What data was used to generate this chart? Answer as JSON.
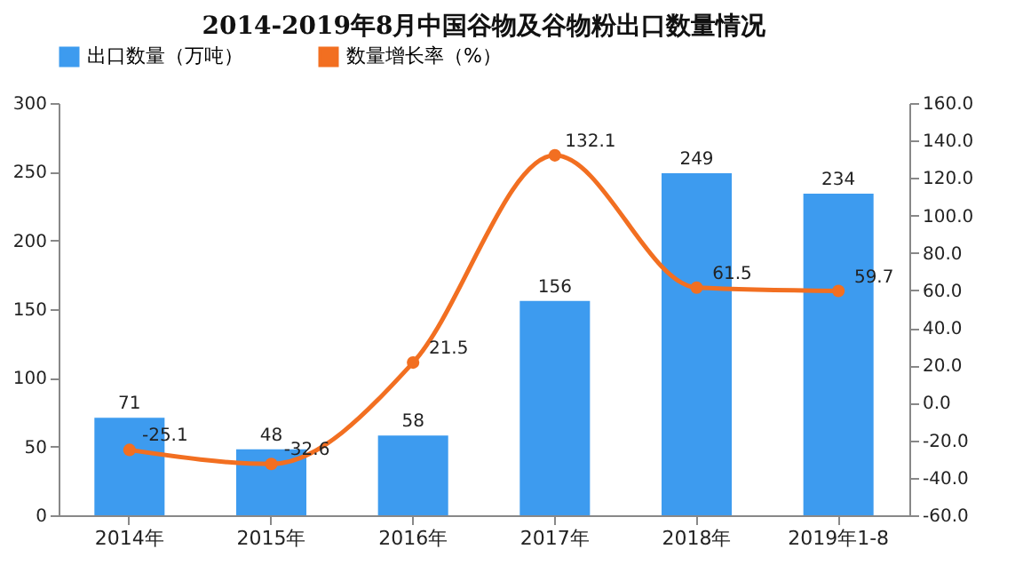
{
  "chart_data": {
    "type": "bar",
    "title": "2014-2019年8月中国谷物及谷物粉出口数量情况",
    "categories": [
      "2014年",
      "2015年",
      "2016年",
      "2017年",
      "2018年",
      "2019年1-8"
    ],
    "series": [
      {
        "name": "出口数量（万吨）",
        "type": "bar",
        "color": "#3d9bef",
        "values": [
          71,
          48,
          58,
          156,
          249,
          234
        ]
      },
      {
        "name": "数量增长率（%）",
        "type": "line",
        "axis": "y2",
        "color": "#f26f21",
        "values": [
          -25.1,
          -32.6,
          21.5,
          132.1,
          61.5,
          59.7
        ],
        "value_labels": [
          "-25.1",
          "-32.6",
          "21.5",
          "132.1",
          "61.5",
          "59.7"
        ]
      }
    ],
    "data_labels": true,
    "marker": "circle",
    "legend": "top",
    "grid": false,
    "ylim": [
      0,
      300
    ],
    "yticks": [
      0,
      50,
      100,
      150,
      200,
      250,
      300
    ],
    "y2lim": [
      -60,
      160
    ],
    "y2ticks": [
      {
        "value": -60,
        "label": "-60.0"
      },
      {
        "value": -40,
        "label": "-40.0"
      },
      {
        "value": -20,
        "label": "-20.0"
      },
      {
        "value": 0,
        "label": "0.0"
      },
      {
        "value": 20,
        "label": "20.0"
      },
      {
        "value": 40,
        "label": "40.0"
      },
      {
        "value": 60,
        "label": "60.0"
      },
      {
        "value": 80,
        "label": "80.0"
      },
      {
        "value": 100,
        "label": "100.0"
      },
      {
        "value": 120,
        "label": "120.0"
      },
      {
        "value": 140,
        "label": "140.0"
      },
      {
        "value": 160,
        "label": "160.0"
      }
    ]
  }
}
